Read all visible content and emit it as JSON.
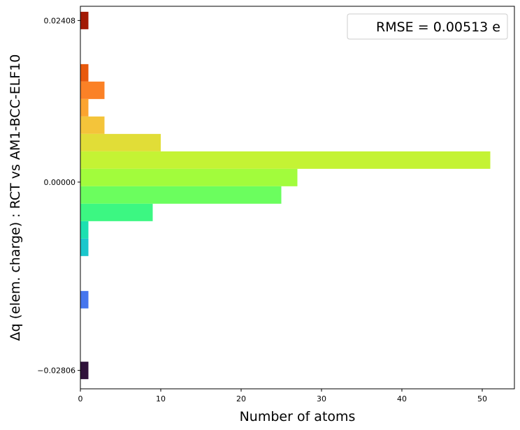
{
  "chart_data": {
    "type": "bar",
    "orientation": "horizontal",
    "xlabel": "Number of atoms",
    "ylabel": "Δq (elem. charge) : RCT vs AM1-BCC-ELF10",
    "xlim": [
      0,
      54
    ],
    "ylim": [
      -0.0308,
      0.0262
    ],
    "xticks": [
      0,
      10,
      20,
      30,
      40,
      50
    ],
    "yticks": [
      {
        "value": 0.02408,
        "label": "0.02408"
      },
      {
        "value": 0.0,
        "label": "0.00000"
      },
      {
        "value": -0.02806,
        "label": "−0.02806"
      }
    ],
    "legend": {
      "text": "RMSE = 0.00513 e",
      "placement": "upper right"
    },
    "bin_width": 0.0026,
    "bins": [
      {
        "center": 0.02408,
        "count": 1,
        "color": "#a31a04"
      },
      {
        "center": 0.01628,
        "count": 1,
        "color": "#e8590c"
      },
      {
        "center": 0.01368,
        "count": 3,
        "color": "#fb8126"
      },
      {
        "center": 0.01108,
        "count": 1,
        "color": "#fca42f"
      },
      {
        "center": 0.00848,
        "count": 3,
        "color": "#f4c43a"
      },
      {
        "center": 0.00588,
        "count": 10,
        "color": "#e1dd37"
      },
      {
        "center": 0.00328,
        "count": 51,
        "color": "#c4f334"
      },
      {
        "center": 0.00068,
        "count": 27,
        "color": "#a2fc3c"
      },
      {
        "center": -0.00192,
        "count": 25,
        "color": "#6bfe5e"
      },
      {
        "center": -0.00452,
        "count": 9,
        "color": "#3cf782"
      },
      {
        "center": -0.00712,
        "count": 1,
        "color": "#1ce0b0"
      },
      {
        "center": -0.00972,
        "count": 1,
        "color": "#1ac7cc"
      },
      {
        "center": -0.01752,
        "count": 1,
        "color": "#4676ee"
      },
      {
        "center": -0.02806,
        "count": 1,
        "color": "#30123b"
      }
    ]
  }
}
